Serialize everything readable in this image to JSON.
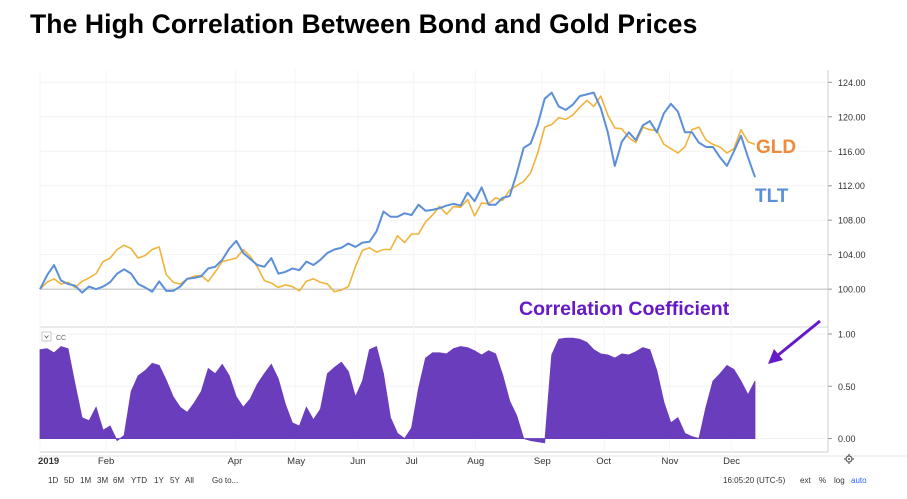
{
  "title": "The High Correlation Between Bond and Gold Prices",
  "chart_data": [
    {
      "type": "line",
      "title": "The High Correlation Between Bond and Gold Prices",
      "x_labels": [
        "2019",
        "Feb",
        "Apr",
        "May",
        "Jun",
        "Jul",
        "Aug",
        "Sep",
        "Oct",
        "Nov",
        "Dec"
      ],
      "ylim": [
        97,
        124.5
      ],
      "y_ticks": [
        "124.00",
        "120.00",
        "116.00",
        "112.00",
        "108.00",
        "104.00",
        "100.00"
      ],
      "y_tick_values": [
        124,
        120,
        116,
        112,
        108,
        104,
        100
      ],
      "baseline": 100,
      "series": [
        {
          "name": "GLD",
          "color": "#f0b43c",
          "label_color": "#ef8a3a",
          "values": [
            100,
            100.8,
            101.2,
            100.6,
            100.8,
            100.2,
            100.9,
            101.3,
            101.8,
            103.2,
            103.6,
            104.6,
            105.1,
            104.7,
            103.6,
            103.9,
            104.6,
            104.9,
            101.7,
            100.8,
            100.6,
            101.2,
            101.5,
            101.6,
            100.9,
            102.0,
            103.2,
            103.4,
            103.6,
            104.6,
            103.8,
            102.6,
            101.0,
            100.7,
            100.2,
            100.5,
            100.3,
            99.8,
            100.9,
            101.2,
            100.8,
            100.6,
            99.7,
            99.9,
            100.3,
            102.6,
            104.5,
            104.8,
            104.3,
            104.6,
            104.6,
            106.2,
            105.4,
            106.4,
            106.4,
            107.8,
            108.6,
            109.6,
            108.7,
            109.6,
            109.5,
            110.4,
            108.5,
            110.0,
            109.9,
            110.6,
            110.3,
            111.5,
            112.0,
            112.5,
            113.5,
            115.8,
            118.8,
            119.1,
            119.9,
            119.7,
            120.2,
            121.1,
            121.9,
            121.2,
            122.4,
            120.2,
            118.7,
            118.6,
            117.6,
            117.0,
            118.8,
            118.5,
            118.4,
            116.8,
            116.3,
            115.8,
            116.5,
            118.5,
            118.8,
            117.3,
            116.8,
            116.5,
            115.8,
            116.3,
            118.5,
            117.1,
            116.8
          ]
        },
        {
          "name": "TLT",
          "color": "#5b8fd8",
          "label_color": "#5b8fd8",
          "values": [
            100,
            101.6,
            102.8,
            101.0,
            100.6,
            100.4,
            99.6,
            100.3,
            100.0,
            100.3,
            100.8,
            101.8,
            102.3,
            101.8,
            100.6,
            100.2,
            99.7,
            100.9,
            99.8,
            99.8,
            100.3,
            101.2,
            101.3,
            101.5,
            102.4,
            102.6,
            103.4,
            104.7,
            105.6,
            104.2,
            103.5,
            102.8,
            102.6,
            103.6,
            101.8,
            102.0,
            102.4,
            102.2,
            103.2,
            102.8,
            103.4,
            104.2,
            104.6,
            104.8,
            105.3,
            104.9,
            105.4,
            105.5,
            106.7,
            109.0,
            108.4,
            108.4,
            108.8,
            108.6,
            109.8,
            109.1,
            109.2,
            109.4,
            109.7,
            109.9,
            109.7,
            111.2,
            110.2,
            111.8,
            109.8,
            109.8,
            110.6,
            110.8,
            113.4,
            116.4,
            116.9,
            119.1,
            122.1,
            122.8,
            121.2,
            120.8,
            121.4,
            122.4,
            122.6,
            122.8,
            121.0,
            118.2,
            114.3,
            117.1,
            118.2,
            117.3,
            119.0,
            119.5,
            118.2,
            120.4,
            121.5,
            120.6,
            118.2,
            118.2,
            117.0,
            116.5,
            116.5,
            115.3,
            114.3,
            116.0,
            117.8,
            115.3,
            113.0
          ]
        }
      ]
    },
    {
      "type": "area",
      "title": "Correlation Coefficient",
      "indicator_label": "CC",
      "ylim": [
        -0.1,
        1.0
      ],
      "y_ticks": [
        "1.00",
        "0.50",
        "0.00"
      ],
      "y_tick_values": [
        1,
        0.5,
        0
      ],
      "series": [
        {
          "name": "Correlation Coefficient",
          "color": "#6a3dbd",
          "values": [
            0.85,
            0.86,
            0.82,
            0.88,
            0.86,
            0.52,
            0.2,
            0.17,
            0.3,
            0.08,
            0.12,
            -0.02,
            0.03,
            0.45,
            0.6,
            0.65,
            0.72,
            0.7,
            0.56,
            0.4,
            0.3,
            0.25,
            0.34,
            0.45,
            0.67,
            0.62,
            0.71,
            0.6,
            0.4,
            0.3,
            0.38,
            0.52,
            0.62,
            0.71,
            0.57,
            0.33,
            0.15,
            0.12,
            0.3,
            0.18,
            0.28,
            0.62,
            0.68,
            0.73,
            0.64,
            0.4,
            0.55,
            0.85,
            0.88,
            0.62,
            0.2,
            0.05,
            0.0,
            0.1,
            0.48,
            0.77,
            0.82,
            0.82,
            0.81,
            0.86,
            0.88,
            0.87,
            0.84,
            0.8,
            0.84,
            0.81,
            0.61,
            0.36,
            0.22,
            0.0,
            -0.02,
            -0.03,
            -0.04,
            0.8,
            0.95,
            0.96,
            0.96,
            0.95,
            0.92,
            0.85,
            0.81,
            0.8,
            0.77,
            0.81,
            0.8,
            0.83,
            0.87,
            0.85,
            0.65,
            0.35,
            0.15,
            0.2,
            0.05,
            0.02,
            0.0,
            0.3,
            0.55,
            0.62,
            0.7,
            0.66,
            0.55,
            0.42,
            0.55
          ]
        }
      ]
    }
  ],
  "labels": {
    "gld": "GLD",
    "tlt": "TLT",
    "correlation": "Correlation Coefficient"
  },
  "toolbar": {
    "ranges": [
      "1D",
      "5D",
      "1M",
      "3M",
      "6M",
      "YTD",
      "1Y",
      "5Y",
      "All"
    ],
    "goto": "Go to...",
    "time": "16:05:20 (UTC-5)",
    "ext": "ext",
    "pct": "%",
    "log": "log",
    "auto": "auto"
  }
}
